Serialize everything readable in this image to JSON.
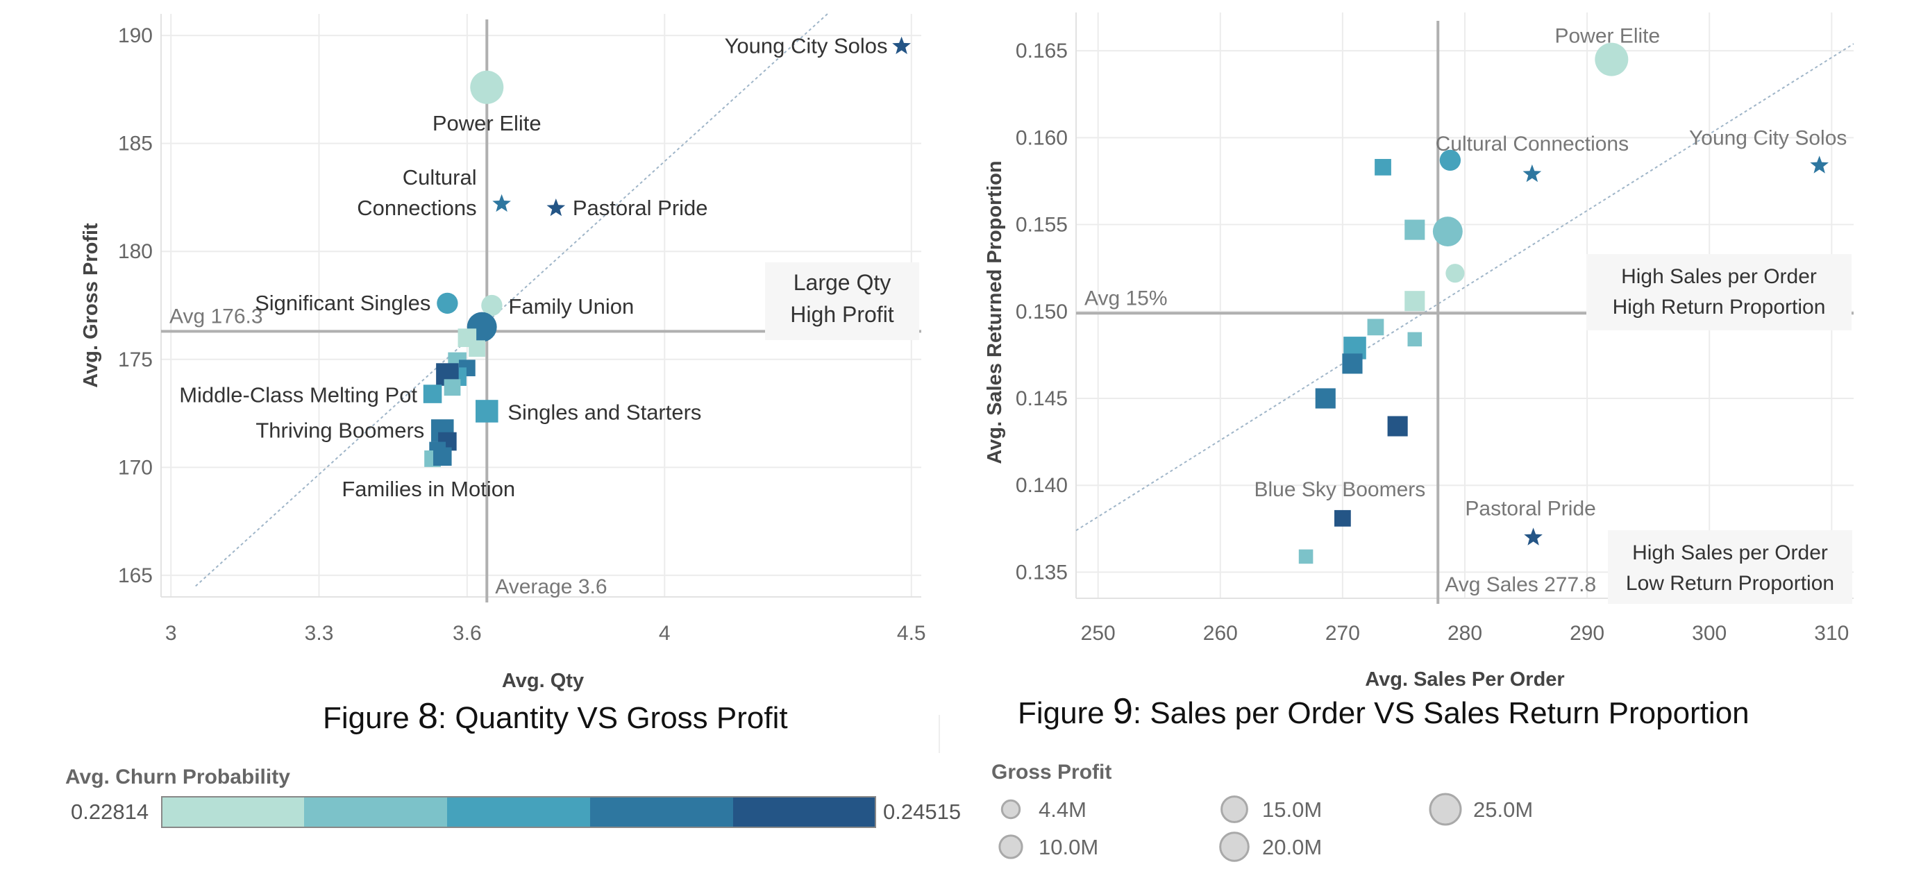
{
  "colors": {
    "churn_scale": [
      "#b6e0d6",
      "#7cc2c9",
      "#45a2bc",
      "#2e77a0",
      "#245586"
    ],
    "grid": "#ececec",
    "reference_line": "#b0b0b0",
    "trend_line": "#9fb5c8"
  },
  "chart_data": [
    {
      "type": "scatter",
      "title": "",
      "xlabel": "Avg. Qty",
      "ylabel": "Avg. Gross Profit",
      "xlim": [
        2.98,
        4.52
      ],
      "ylim": [
        164,
        191
      ],
      "x_ticks": [
        "3",
        "3.3",
        "3.6",
        "4",
        "4.5"
      ],
      "y_ticks": [
        "165",
        "170",
        "175",
        "180",
        "185",
        "190"
      ],
      "grid": true,
      "reference_lines": {
        "x": {
          "value": 3.64,
          "label": "Average 3.6"
        },
        "y": {
          "value": 176.3,
          "label": "Avg 176.3"
        }
      },
      "trend_line": {
        "from": [
          3.05,
          164.5
        ],
        "to": [
          4.33,
          191
        ]
      },
      "quadrant_label": [
        "Large Qty",
        "High Profit"
      ],
      "marks": [
        {
          "label": "Young City Solos",
          "x": 4.48,
          "y": 189.5,
          "shape": "star",
          "churn": 4,
          "size": 1
        },
        {
          "label": "Power Elite",
          "x": 3.64,
          "y": 187.6,
          "shape": "circle",
          "churn": 0,
          "size": 25
        },
        {
          "label": "Cultural Connections",
          "x": 3.67,
          "y": 182.2,
          "shape": "star",
          "churn": 3,
          "size": 1
        },
        {
          "label": "Pastoral Pride",
          "x": 3.78,
          "y": 182.0,
          "shape": "star",
          "churn": 4,
          "size": 1
        },
        {
          "label": "Significant Singles",
          "x": 3.56,
          "y": 177.6,
          "shape": "circle",
          "churn": 2,
          "size": 10
        },
        {
          "label": "Family Union",
          "x": 3.65,
          "y": 177.5,
          "shape": "circle",
          "churn": 0,
          "size": 10
        },
        {
          "label": "",
          "x": 3.63,
          "y": 176.5,
          "shape": "circle",
          "churn": 3,
          "size": 20
        },
        {
          "label": "",
          "x": 3.6,
          "y": 176.0,
          "shape": "square",
          "churn": 0,
          "size": 10
        },
        {
          "label": "",
          "x": 3.62,
          "y": 175.5,
          "shape": "square",
          "churn": 0,
          "size": 8
        },
        {
          "label": "",
          "x": 3.58,
          "y": 174.9,
          "shape": "square",
          "churn": 1,
          "size": 10
        },
        {
          "label": "",
          "x": 3.6,
          "y": 174.6,
          "shape": "square",
          "churn": 3,
          "size": 8
        },
        {
          "label": "",
          "x": 3.58,
          "y": 174.2,
          "shape": "square",
          "churn": 2,
          "size": 10
        },
        {
          "label": "",
          "x": 3.56,
          "y": 174.3,
          "shape": "square",
          "churn": 4,
          "size": 15
        },
        {
          "label": "",
          "x": 3.57,
          "y": 173.7,
          "shape": "square",
          "churn": 1,
          "size": 8
        },
        {
          "label": "Middle-Class Melting Pot",
          "x": 3.53,
          "y": 173.4,
          "shape": "square",
          "churn": 2,
          "size": 10
        },
        {
          "label": "Singles and Starters",
          "x": 3.64,
          "y": 172.6,
          "shape": "square",
          "churn": 2,
          "size": 15
        },
        {
          "label": "Thriving Boomers",
          "x": 3.55,
          "y": 171.7,
          "shape": "square",
          "churn": 3,
          "size": 15
        },
        {
          "label": "",
          "x": 3.56,
          "y": 171.2,
          "shape": "square",
          "churn": 4,
          "size": 10
        },
        {
          "label": "",
          "x": 3.54,
          "y": 170.8,
          "shape": "square",
          "churn": 3,
          "size": 8
        },
        {
          "label": "",
          "x": 3.53,
          "y": 170.4,
          "shape": "square",
          "churn": 1,
          "size": 8
        },
        {
          "label": "Families in Motion",
          "x": 3.55,
          "y": 170.5,
          "shape": "square",
          "churn": 3,
          "size": 10
        }
      ]
    },
    {
      "type": "scatter",
      "title": "",
      "xlabel": "Avg. Sales Per Order",
      "ylabel": "Avg. Sales Returned Proportion",
      "xlim": [
        248.2,
        311.8
      ],
      "ylim": [
        0.1335,
        0.1672
      ],
      "x_ticks": [
        "250",
        "260",
        "270",
        "280",
        "290",
        "300",
        "310"
      ],
      "y_ticks": [
        "0.135",
        "0.140",
        "0.145",
        "0.150",
        "0.155",
        "0.160",
        "0.165"
      ],
      "grid": true,
      "reference_lines": {
        "x": {
          "value": 277.8,
          "label": "Avg Sales 277.8"
        },
        "y": {
          "value": 0.1499,
          "label": "Avg 15%"
        }
      },
      "trend_line": {
        "from": [
          248.2,
          0.1374
        ],
        "to": [
          311.8,
          0.1654
        ]
      },
      "quadrant_labels": [
        [
          "High Sales per Order",
          "High Return Proportion"
        ],
        [
          "High Sales per Order",
          "Low Return Proportion"
        ]
      ],
      "marks": [
        {
          "label": "Power Elite",
          "x": 292.0,
          "y": 0.1645,
          "shape": "circle",
          "churn": 0,
          "size": 25
        },
        {
          "label": "Cultural Connections",
          "x": 278.8,
          "y": 0.1587,
          "shape": "circle",
          "churn": 2,
          "size": 10
        },
        {
          "label": "",
          "x": 285.5,
          "y": 0.1579,
          "shape": "star",
          "churn": 3,
          "size": 1
        },
        {
          "label": "Young City Solos",
          "x": 309.0,
          "y": 0.1584,
          "shape": "star",
          "churn": 3,
          "size": 1
        },
        {
          "label": "",
          "x": 273.3,
          "y": 0.1583,
          "shape": "square",
          "churn": 2,
          "size": 8
        },
        {
          "label": "",
          "x": 275.9,
          "y": 0.1547,
          "shape": "square",
          "churn": 1,
          "size": 12
        },
        {
          "label": "",
          "x": 278.6,
          "y": 0.1546,
          "shape": "circle",
          "churn": 1,
          "size": 20
        },
        {
          "label": "",
          "x": 279.2,
          "y": 0.1522,
          "shape": "circle",
          "churn": 0,
          "size": 8
        },
        {
          "label": "",
          "x": 275.9,
          "y": 0.1506,
          "shape": "square",
          "churn": 0,
          "size": 12
        },
        {
          "label": "",
          "x": 272.7,
          "y": 0.1491,
          "shape": "square",
          "churn": 1,
          "size": 8
        },
        {
          "label": "",
          "x": 275.9,
          "y": 0.1484,
          "shape": "square",
          "churn": 1,
          "size": 6
        },
        {
          "label": "",
          "x": 271.0,
          "y": 0.1479,
          "shape": "square",
          "churn": 2,
          "size": 15
        },
        {
          "label": "",
          "x": 270.8,
          "y": 0.147,
          "shape": "square",
          "churn": 3,
          "size": 12
        },
        {
          "label": "",
          "x": 268.6,
          "y": 0.145,
          "shape": "square",
          "churn": 3,
          "size": 12
        },
        {
          "label": "",
          "x": 274.5,
          "y": 0.1434,
          "shape": "square",
          "churn": 4,
          "size": 12
        },
        {
          "label": "Blue Sky Boomers",
          "x": 270.0,
          "y": 0.1381,
          "shape": "square",
          "churn": 4,
          "size": 8
        },
        {
          "label": "Pastoral Pride",
          "x": 285.6,
          "y": 0.137,
          "shape": "star",
          "churn": 4,
          "size": 1
        },
        {
          "label": "",
          "x": 267.0,
          "y": 0.1359,
          "shape": "square",
          "churn": 1,
          "size": 6
        }
      ]
    }
  ],
  "captions": {
    "left_prefix": "Figure ",
    "left_number": "8",
    "left_text": ": Quantity VS Gross Profit",
    "right_prefix": "Figure ",
    "right_number": "9",
    "right_text": ":  Sales per Order VS Sales Return Proportion"
  },
  "legend_churn": {
    "title": "Avg. Churn Probability",
    "min_label": "0.22814",
    "max_label": "0.24515"
  },
  "legend_size": {
    "title": "Gross Profit",
    "items": [
      {
        "label": "4.4M",
        "size": 4.4
      },
      {
        "label": "10.0M",
        "size": 10
      },
      {
        "label": "15.0M",
        "size": 15
      },
      {
        "label": "20.0M",
        "size": 20
      },
      {
        "label": "25.0M",
        "size": 25
      }
    ]
  }
}
